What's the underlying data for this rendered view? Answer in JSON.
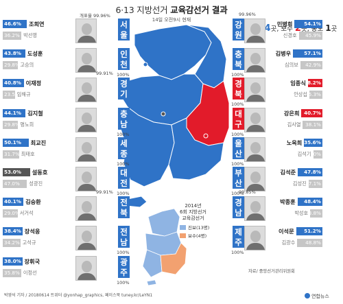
{
  "header": {
    "title_prefix": "6·13 지방선거",
    "title_strong": "교육감선거 결과",
    "subtitle": "14일 오전9시 현재"
  },
  "summary": {
    "progressive_label": "진보",
    "progressive_count": "14",
    "conservative_label": "보수",
    "conservative_count": "2",
    "centrist_label": "중도",
    "centrist_count": "1",
    "unit": "곳"
  },
  "count_label": "개표율",
  "colors": {
    "progressive": "#2f73c7",
    "conservative": "#e21b2a",
    "centrist": "#555555",
    "loser": "#c6c6c6"
  },
  "inset": {
    "title_line1": "2014년",
    "title_line2": "6회 지방선거",
    "title_line3": "교육감선거",
    "legend_progressive": "진보(13명)",
    "legend_conservative": "보수(4명)"
  },
  "credit": "박영석 기자 / 20180614 트위터 @yonhap_graphics, 페이스북 tuney.kr/LeYN1",
  "source": "자료/ 중앙선거관리위원회",
  "logo": "연합뉴스",
  "chart_data": {
    "type": "bar",
    "title": "6·13 지방선거 교육감선거 결과",
    "subtitle": "14일 오전9시 현재",
    "unit": "%",
    "regions": [
      {
        "region": "서울",
        "count_rate": "99.96%",
        "winner": "조희연",
        "winner_pct": 46.6,
        "winner_camp": "progressive",
        "runner_up": "박선영",
        "runner_up_pct": 36.2
      },
      {
        "region": "인천",
        "count_rate": "100%",
        "winner": "도성훈",
        "winner_pct": 43.8,
        "winner_camp": "progressive",
        "runner_up": "고승의",
        "runner_up_pct": 29.8
      },
      {
        "region": "경기",
        "count_rate": "99.91%",
        "winner": "이재정",
        "winner_pct": 40.8,
        "winner_camp": "progressive",
        "runner_up": "임해규",
        "runner_up_pct": 23.5
      },
      {
        "region": "충남",
        "count_rate": "100%",
        "winner": "김지철",
        "winner_pct": 44.1,
        "winner_camp": "progressive",
        "runner_up": "명노희",
        "runner_up_pct": 29.8
      },
      {
        "region": "세종",
        "count_rate": "100%",
        "winner": "최교진",
        "winner_pct": 50.1,
        "winner_camp": "progressive",
        "runner_up": "최태호",
        "runner_up_pct": 31.7
      },
      {
        "region": "대전",
        "count_rate": "100%",
        "winner": "설동호",
        "winner_pct": 53.0,
        "winner_camp": "centrist",
        "runner_up": "성광진",
        "runner_up_pct": 47.0
      },
      {
        "region": "전북",
        "count_rate": "99.91%",
        "winner": "김승환",
        "winner_pct": 40.1,
        "winner_camp": "progressive",
        "runner_up": "서거석",
        "runner_up_pct": 29.0
      },
      {
        "region": "전남",
        "count_rate": "100%",
        "winner": "장석웅",
        "winner_pct": 38.4,
        "winner_camp": "progressive",
        "runner_up": "고석규",
        "runner_up_pct": 34.2
      },
      {
        "region": "광주",
        "count_rate": "100%",
        "winner": "장휘국",
        "winner_pct": 38.0,
        "winner_camp": "progressive",
        "runner_up": "이정선",
        "runner_up_pct": 35.8
      },
      {
        "region": "강원",
        "count_rate": "99.96%",
        "winner": "민병희",
        "winner_pct": 54.1,
        "winner_camp": "progressive",
        "runner_up": "신경호",
        "runner_up_pct": 45.9
      },
      {
        "region": "충북",
        "count_rate": "100%",
        "winner": "김병우",
        "winner_pct": 57.1,
        "winner_camp": "progressive",
        "runner_up": "심의보",
        "runner_up_pct": 42.9
      },
      {
        "region": "경북",
        "count_rate": "100%",
        "winner": "임종식",
        "winner_pct": 28.2,
        "winner_camp": "conservative",
        "runner_up": "안상섭",
        "runner_up_pct": 25.3
      },
      {
        "region": "대구",
        "count_rate": "100%",
        "winner": "강은희",
        "winner_pct": 40.7,
        "winner_camp": "conservative",
        "runner_up": "김사열",
        "runner_up_pct": 38.1
      },
      {
        "region": "울산",
        "count_rate": "100%",
        "winner": "노옥희",
        "winner_pct": 35.6,
        "winner_camp": "progressive",
        "runner_up": "김석기",
        "runner_up_pct": 18.0
      },
      {
        "region": "부산",
        "count_rate": "100%",
        "winner": "김석준",
        "winner_pct": 47.8,
        "winner_camp": "progressive",
        "runner_up": "김성진",
        "runner_up_pct": 27.1
      },
      {
        "region": "경남",
        "count_rate": "99.85%",
        "winner": "박종훈",
        "winner_pct": 48.4,
        "winner_camp": "progressive",
        "runner_up": "박성호",
        "runner_up_pct": 23.8
      },
      {
        "region": "제주",
        "count_rate": "100%",
        "winner": "이석문",
        "winner_pct": 51.2,
        "winner_camp": "progressive",
        "runner_up": "김광수",
        "runner_up_pct": 48.8
      }
    ]
  }
}
